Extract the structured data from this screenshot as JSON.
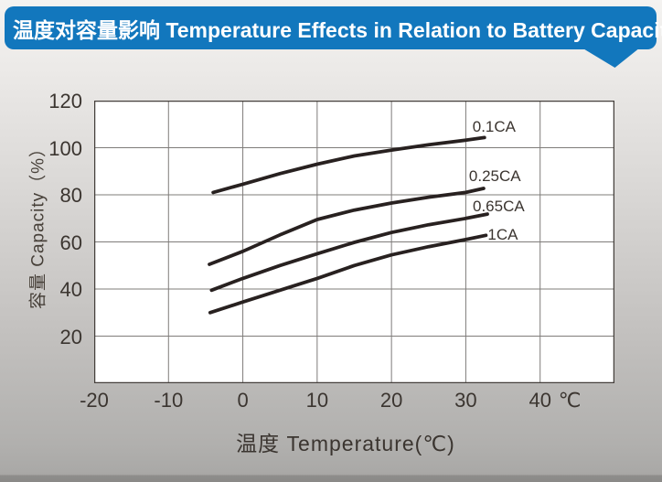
{
  "header": {
    "title": "温度对容量影响 Temperature Effects in Relation to Battery Capacity",
    "background_color": "#1277bd",
    "text_color": "#ffffff"
  },
  "chart_data": {
    "type": "line",
    "title": "",
    "xlabel": "温度 Temperature(℃)",
    "ylabel": "容量 Capacity（%）",
    "x_unit": "℃",
    "xlim": [
      -20,
      50
    ],
    "ylim": [
      0,
      120
    ],
    "x_ticks": [
      -20,
      -10,
      0,
      10,
      20,
      30,
      40
    ],
    "x_tick_labels": [
      "-20",
      "-10",
      "0",
      "10",
      "20",
      "30",
      "40"
    ],
    "y_ticks": [
      120,
      100,
      80,
      60,
      40,
      20
    ],
    "y_tick_labels": [
      "120",
      "100",
      "80",
      "60",
      "40",
      "20"
    ],
    "grid": true,
    "legend_position": "labels-at-line-ends",
    "line_color": "#282120",
    "grid_color": "#7f7c7a",
    "border_color": "#45403c",
    "plot_background": "#ffffff",
    "series": [
      {
        "name": "0.1CA",
        "points": [
          [
            -4,
            81
          ],
          [
            0,
            84.5
          ],
          [
            5,
            89
          ],
          [
            10,
            93
          ],
          [
            15,
            96.5
          ],
          [
            20,
            99
          ],
          [
            25,
            101.3
          ],
          [
            30,
            103.2
          ],
          [
            32.5,
            104.3
          ]
        ],
        "label_offset": [
          -13,
          -20
        ]
      },
      {
        "name": "0.25CA",
        "points": [
          [
            -4.5,
            50.5
          ],
          [
            0,
            56
          ],
          [
            5,
            63
          ],
          [
            10,
            69.5
          ],
          [
            15,
            73.5
          ],
          [
            20,
            76.5
          ],
          [
            25,
            79
          ],
          [
            30,
            81
          ],
          [
            32.4,
            82.7
          ]
        ],
        "label_offset": [
          -16,
          -22
        ]
      },
      {
        "name": "0.65CA",
        "points": [
          [
            -4.2,
            39.5
          ],
          [
            0,
            44.5
          ],
          [
            5,
            50
          ],
          [
            10,
            55
          ],
          [
            15,
            59.8
          ],
          [
            20,
            64
          ],
          [
            25,
            67.3
          ],
          [
            30,
            70
          ],
          [
            32.9,
            71.8
          ]
        ],
        "label_offset": [
          -16,
          -17
        ]
      },
      {
        "name": "1CA",
        "points": [
          [
            -4.4,
            30
          ],
          [
            0,
            34.5
          ],
          [
            5,
            39.5
          ],
          [
            10,
            44.5
          ],
          [
            15,
            50
          ],
          [
            20,
            54.5
          ],
          [
            25,
            58
          ],
          [
            30,
            61
          ],
          [
            32.7,
            62.8
          ]
        ],
        "label_offset": [
          2,
          -9
        ]
      }
    ]
  }
}
